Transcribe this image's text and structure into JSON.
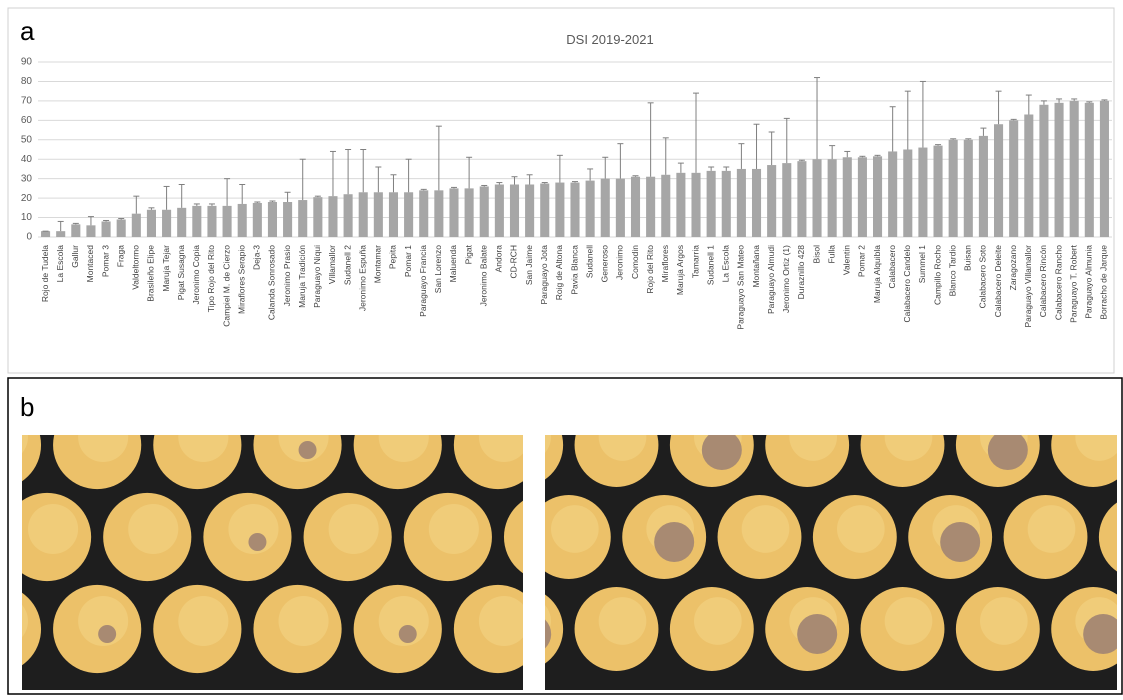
{
  "panel_a_label": "a",
  "panel_b_label": "b",
  "chart_data": {
    "type": "bar",
    "title": "DSI 2019-2021",
    "categories": [
      "Rojo de Tudela",
      "La Escola",
      "Gallur",
      "Montaced",
      "Pomar 3",
      "Fraga",
      "Valdeltormo",
      "Brasileño Elipe",
      "Maruja Tejar",
      "Pigat Susagna",
      "Jeronimo Copia",
      "Tipo Rojo del Rito",
      "Campiel M. de Cierzo",
      "Miraflores Serapio",
      "Deja-3",
      "Calanda Sonrosado",
      "Jeronimo Prasio",
      "Maruja Tradición",
      "Paraguayo Niqui",
      "Villamallor",
      "Sudanell 2",
      "Jeronimo Espuña",
      "Montamar",
      "Pepita",
      "Pomar 1",
      "Paraguayo Francia",
      "San Lorenzo",
      "Maluenda",
      "Pigat",
      "Jeronimo Balate",
      "Andora",
      "CD-RCH",
      "San Jaime",
      "Paraguayo Jota",
      "Roig de Altona",
      "Pavia Blanca",
      "Sudanell",
      "Generoso",
      "Jeronimo",
      "Comodin",
      "Rojo del Rito",
      "Miraflores",
      "Maruja Argos",
      "Tamarria",
      "Sudanell 1",
      "La Escola",
      "Paraguayo San Mateo",
      "Montañana",
      "Paraguayo Almudi",
      "Jeronimo Ortiz (1)",
      "Duraznillo 428",
      "Bisol",
      "Fulla",
      "Valentin",
      "Pomar 2",
      "Maruja Alquibla",
      "Calabacero",
      "Calabacero Candelo",
      "Summel 1",
      "Campillo Rocho",
      "Blanco Tardio",
      "Buisan",
      "Calabacero Soto",
      "Calabacero Deleite",
      "Zaragozano",
      "Paraguayo Villamallor",
      "Calabacero Rincón",
      "Calabacero Rancho",
      "Paraguayo T. Robert",
      "Paraguayo Almunia",
      "Borracho de Jarque"
    ],
    "values": [
      3,
      3,
      6.5,
      6,
      8,
      9,
      12,
      14,
      14,
      15,
      16,
      16,
      16,
      17,
      17.5,
      18,
      18,
      19,
      20.5,
      21,
      22,
      23,
      23,
      23,
      23,
      24,
      24,
      25,
      25,
      26,
      27,
      27,
      27,
      27.5,
      28,
      28,
      29,
      30,
      30,
      31,
      31,
      32,
      33,
      33,
      34,
      34,
      35,
      35,
      37,
      38,
      39,
      40,
      40,
      41,
      41,
      41.5,
      44,
      45,
      46,
      47,
      50,
      50,
      52,
      58,
      60,
      63,
      68,
      69,
      70,
      69,
      70
    ],
    "errors": [
      0,
      5,
      0.5,
      4.5,
      0.5,
      0.5,
      9,
      1,
      12,
      12,
      1,
      1,
      14,
      10,
      0.5,
      0.5,
      5,
      21,
      0.5,
      23,
      23,
      22,
      13,
      9,
      17,
      0.5,
      33,
      0.5,
      16,
      0.5,
      1,
      4,
      5,
      0.5,
      14,
      0.5,
      6,
      11,
      18,
      0.5,
      38,
      19,
      5,
      41,
      2,
      2,
      13,
      23,
      17,
      23,
      0.5,
      42,
      7,
      3,
      0.5,
      0.5,
      23,
      30,
      34,
      0.5,
      0.5,
      0.5,
      4,
      17,
      0.5,
      10,
      2,
      2,
      1,
      0.5,
      0.5
    ],
    "color": "#a6a6a6",
    "ylim": [
      0,
      90
    ],
    "yticks": [
      0,
      10,
      20,
      30,
      40,
      50,
      60,
      70,
      80,
      90
    ],
    "grid": true
  }
}
